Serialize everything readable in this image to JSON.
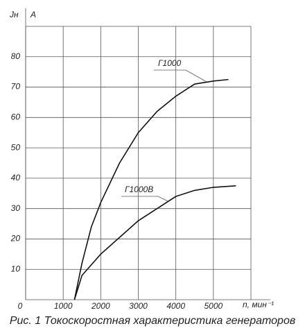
{
  "chart_data": {
    "type": "line",
    "y_label": "Jн",
    "y_unit": "A",
    "x_label": "n, мин⁻¹",
    "caption": "Рис. 1 Токоскоростная характеристика генераторов",
    "xlim": [
      0,
      6000
    ],
    "xticks": [
      0,
      1000,
      2000,
      3000,
      4000,
      5000
    ],
    "ylim": [
      0,
      90
    ],
    "yticks": [
      10,
      20,
      30,
      40,
      50,
      60,
      70,
      80
    ],
    "grid": true,
    "series": [
      {
        "name": "Г1000",
        "color": "#111111",
        "x": [
          1300,
          1500,
          1750,
          2000,
          2500,
          3000,
          3500,
          4000,
          4500,
          5000,
          5400
        ],
        "values": [
          0,
          12,
          24,
          32,
          45,
          55,
          62,
          67,
          71,
          72,
          72.5
        ]
      },
      {
        "name": "Г1000В",
        "color": "#111111",
        "x": [
          1300,
          1500,
          2000,
          2500,
          3000,
          3500,
          4000,
          4500,
          5000,
          5600
        ],
        "values": [
          0,
          8,
          15,
          20.5,
          26,
          30,
          34,
          36,
          37,
          37.5
        ]
      }
    ]
  }
}
